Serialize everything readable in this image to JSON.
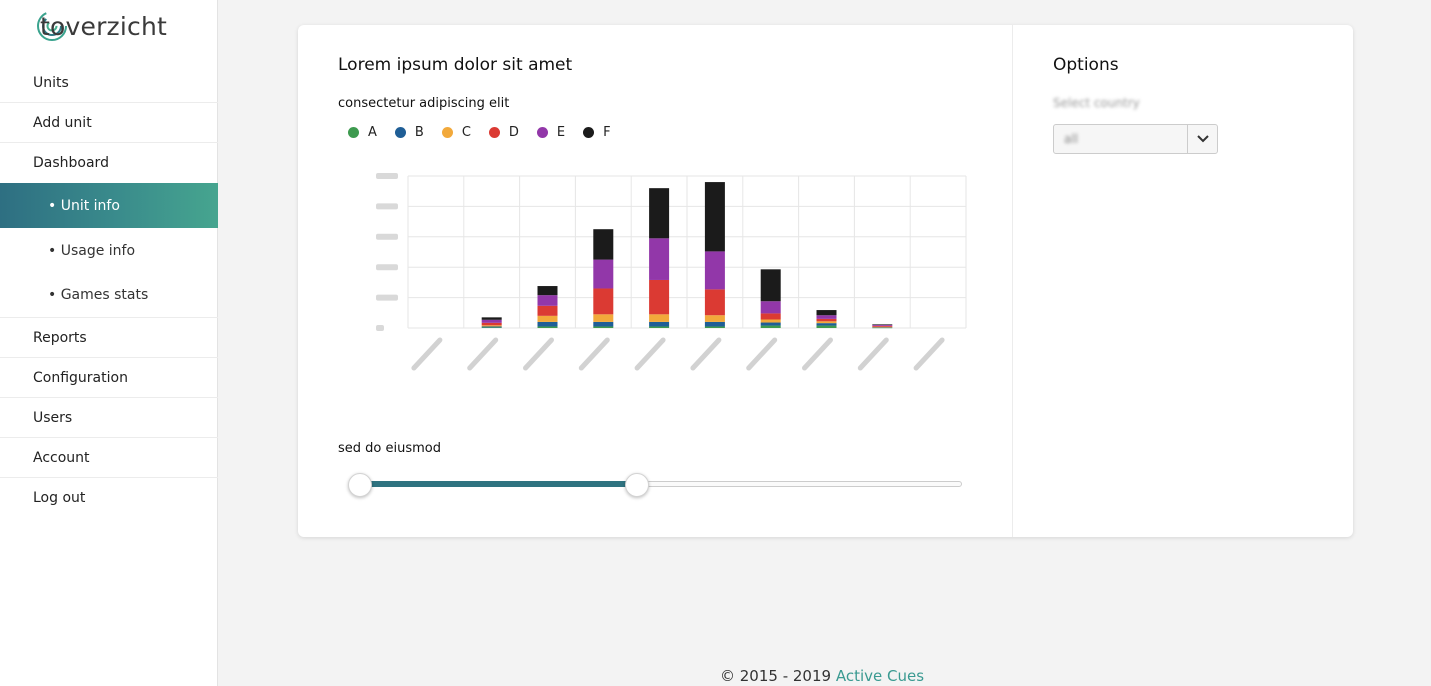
{
  "app": {
    "logo_text": "toverzicht"
  },
  "sidebar": {
    "items": [
      {
        "label": "Units"
      },
      {
        "label": "Add unit"
      },
      {
        "label": "Dashboard"
      }
    ],
    "sub_items": [
      {
        "label": "• Unit info",
        "active": true
      },
      {
        "label": "• Usage info"
      },
      {
        "label": "• Games stats"
      }
    ],
    "items_after": [
      {
        "label": "Reports"
      },
      {
        "label": "Configuration"
      },
      {
        "label": "Users"
      },
      {
        "label": "Account"
      },
      {
        "label": "Log out"
      }
    ]
  },
  "main": {
    "title": "Lorem ipsum dolor sit amet",
    "chart_subtitle": "consectetur adipiscing elit",
    "slider_label": "sed do eiusmod"
  },
  "options": {
    "title": "Options",
    "select_label": "Select country",
    "select_value": "all"
  },
  "slider": {
    "start": 0,
    "end": 0.46
  },
  "footer": {
    "prefix": "© 2015 - 2019 ",
    "link": "Active Cues"
  },
  "colors": {
    "accent": "#2f7380",
    "A": "#3d9a4f",
    "B": "#1f5e96",
    "C": "#f2a93b",
    "D": "#db3a33",
    "E": "#9237a9",
    "F": "#1b1b1b"
  },
  "chart_data": {
    "type": "bar",
    "stacked": true,
    "categories": [
      "",
      "",
      "",
      "",
      "",
      "",
      "",
      "",
      "",
      ""
    ],
    "series": [
      {
        "name": "A",
        "values": [
          0,
          2,
          5,
          5,
          5,
          5,
          8,
          8,
          1,
          0
        ]
      },
      {
        "name": "B",
        "values": [
          0,
          3,
          15,
          15,
          15,
          15,
          10,
          8,
          1,
          0
        ]
      },
      {
        "name": "C",
        "values": [
          0,
          4,
          20,
          25,
          25,
          22,
          10,
          6,
          2,
          0
        ]
      },
      {
        "name": "D",
        "values": [
          0,
          8,
          33,
          85,
          113,
          85,
          20,
          8,
          3,
          0
        ]
      },
      {
        "name": "E",
        "values": [
          0,
          10,
          35,
          95,
          137,
          125,
          40,
          12,
          3,
          0
        ]
      },
      {
        "name": "F",
        "values": [
          0,
          8,
          30,
          100,
          165,
          228,
          105,
          17,
          2,
          0
        ]
      }
    ],
    "ylim": [
      0,
      500
    ],
    "yticks": [
      "",
      "",
      "",
      "",
      "",
      ""
    ],
    "grid": true,
    "legend": "top-left"
  }
}
